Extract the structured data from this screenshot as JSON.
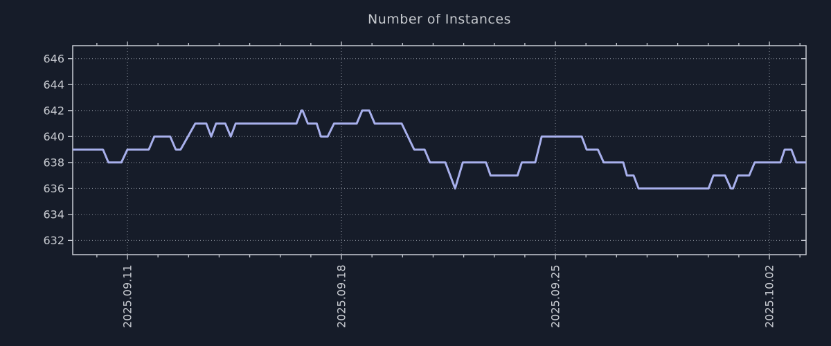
{
  "title": "Number of Instances",
  "colors": {
    "background": "#161c29",
    "line": "#a8b0ec",
    "grid": "#a7adb8",
    "frame": "#c9cdd5",
    "tick_text": "#c9ccd2",
    "title_text": "#c5c8cd"
  },
  "chart_data": {
    "type": "line",
    "title": "Number of Instances",
    "xlabel": "",
    "ylabel": "",
    "grid": "dotted",
    "legend": "none",
    "xlim": [
      -1.79,
      22.2
    ],
    "ylim": [
      630.9,
      647.0
    ],
    "y_ticks": [
      632,
      634,
      636,
      638,
      640,
      642,
      644,
      646
    ],
    "x_major_ticks": [
      {
        "t": 0,
        "label": "2025.09.11"
      },
      {
        "t": 7,
        "label": "2025.09.18"
      },
      {
        "t": 14,
        "label": "2025.09.25"
      },
      {
        "t": 21,
        "label": "2025.10.02"
      }
    ],
    "x_minor_step": 1,
    "series": [
      {
        "name": "instances",
        "points": [
          [
            -1.79,
            639
          ],
          [
            -0.8,
            639
          ],
          [
            -0.62,
            638
          ],
          [
            -0.2,
            638
          ],
          [
            0.0,
            639
          ],
          [
            0.7,
            639
          ],
          [
            0.88,
            640
          ],
          [
            1.4,
            640
          ],
          [
            1.58,
            639
          ],
          [
            1.74,
            639
          ],
          [
            2.22,
            641
          ],
          [
            2.58,
            641
          ],
          [
            2.74,
            640
          ],
          [
            2.9,
            641
          ],
          [
            3.2,
            641
          ],
          [
            3.38,
            640
          ],
          [
            3.54,
            641
          ],
          [
            5.53,
            641
          ],
          [
            5.69,
            642
          ],
          [
            5.73,
            642
          ],
          [
            5.9,
            641
          ],
          [
            6.19,
            641
          ],
          [
            6.33,
            640
          ],
          [
            6.55,
            640
          ],
          [
            6.76,
            641
          ],
          [
            7.5,
            641
          ],
          [
            7.68,
            642
          ],
          [
            7.91,
            642
          ],
          [
            8.09,
            641
          ],
          [
            8.97,
            641
          ],
          [
            9.38,
            639
          ],
          [
            9.72,
            639
          ],
          [
            9.9,
            638
          ],
          [
            10.4,
            638
          ],
          [
            10.72,
            636
          ],
          [
            10.97,
            638
          ],
          [
            11.73,
            638
          ],
          [
            11.88,
            637
          ],
          [
            12.76,
            637
          ],
          [
            12.9,
            638
          ],
          [
            13.34,
            638
          ],
          [
            13.55,
            640
          ],
          [
            14.86,
            640
          ],
          [
            15.02,
            639
          ],
          [
            15.39,
            639
          ],
          [
            15.58,
            638
          ],
          [
            16.22,
            638
          ],
          [
            16.34,
            637
          ],
          [
            16.56,
            637
          ],
          [
            16.72,
            636
          ],
          [
            19.01,
            636
          ],
          [
            19.17,
            637
          ],
          [
            19.55,
            637
          ],
          [
            19.74,
            636
          ],
          [
            19.81,
            636
          ],
          [
            19.97,
            637
          ],
          [
            20.34,
            637
          ],
          [
            20.52,
            638
          ],
          [
            21.36,
            638
          ],
          [
            21.5,
            639
          ],
          [
            21.72,
            639
          ],
          [
            21.88,
            638
          ],
          [
            22.2,
            638
          ]
        ]
      }
    ]
  }
}
